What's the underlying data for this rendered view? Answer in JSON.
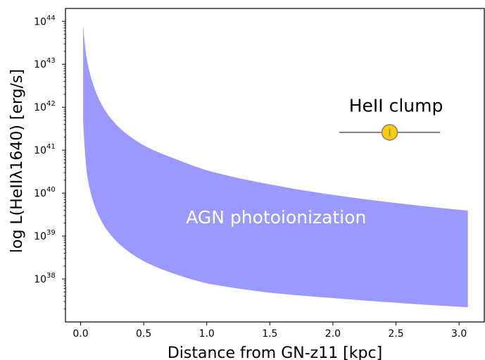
{
  "chart_data": {
    "type": "area",
    "title": "",
    "xlabel": "Distance from GN-z11 [kpc]",
    "ylabel": "log L(HeIIλ1640) [erg/s]",
    "xlim": [
      -0.12,
      3.2
    ],
    "ylim_log10": [
      37.0,
      44.3
    ],
    "y_scale": "log",
    "grid": false,
    "x_ticks": [
      {
        "value": 0.0,
        "label": "0.0"
      },
      {
        "value": 0.5,
        "label": "0.5"
      },
      {
        "value": 1.0,
        "label": "1.0"
      },
      {
        "value": 1.5,
        "label": "1.5"
      },
      {
        "value": 2.0,
        "label": "2.0"
      },
      {
        "value": 2.5,
        "label": "2.5"
      },
      {
        "value": 3.0,
        "label": "3.0"
      }
    ],
    "y_ticks": [
      {
        "log10": 38,
        "base": "10",
        "exp": "38"
      },
      {
        "log10": 39,
        "base": "10",
        "exp": "39"
      },
      {
        "log10": 40,
        "base": "10",
        "exp": "40"
      },
      {
        "log10": 41,
        "base": "10",
        "exp": "41"
      },
      {
        "log10": 42,
        "base": "10",
        "exp": "42"
      },
      {
        "log10": 43,
        "base": "10",
        "exp": "43"
      },
      {
        "log10": 44,
        "base": "10",
        "exp": "44"
      }
    ],
    "band": {
      "label": "AGN photoionization",
      "color": "#9999ff",
      "distance_kpc": [
        0.02,
        0.05,
        0.1,
        0.2,
        0.3,
        0.5,
        0.75,
        1.0,
        1.5,
        2.0,
        2.5,
        3.07
      ],
      "upper": [
        8.5e+43,
        1.3e+43,
        3.4e+42,
        7.9e+41,
        3.5e+41,
        1.3e+41,
        6.3e+40,
        3.4e+40,
        1.6e+40,
        9.1e+39,
        5.9e+39,
        3.9e+39
      ],
      "lower": [
        5e+41,
        2.8e+40,
        6.3e+39,
        1.5e+39,
        6.8e+38,
        2.6e+38,
        1.3e+38,
        7.9e+37,
        4.8e+37,
        3.6e+37,
        2.8e+37,
        2.2e+37
      ]
    },
    "point": {
      "label": "HeII clump",
      "x": 2.45,
      "xerr": [
        0.4,
        0.4
      ],
      "y": 2.6e+41,
      "yerr": [
        3e+40,
        3e+40
      ],
      "color": "#ffcc00",
      "edgecolor": "#808080",
      "errorcolor": "#808080"
    }
  }
}
